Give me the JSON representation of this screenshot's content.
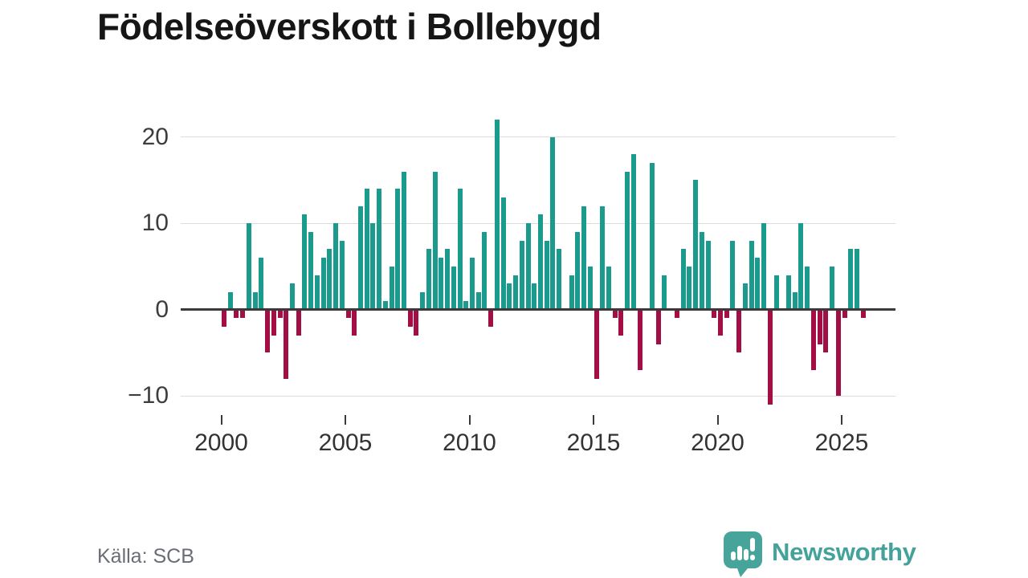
{
  "chart_data": {
    "type": "bar",
    "title": "Födelseöverskott i Bollebygd",
    "source": "Källa: SCB",
    "legend": "none",
    "grid": "horizontal",
    "xlabel": "",
    "ylabel": "",
    "ylim": [
      -13,
      23
    ],
    "y_axis_ticks": [
      {
        "value": 20,
        "label": "20"
      },
      {
        "value": 10,
        "label": "10"
      },
      {
        "value": 0,
        "label": "0"
      },
      {
        "value": -10,
        "label": "−10"
      }
    ],
    "x_axis_ticks": [
      {
        "year": 2000,
        "label": "2000"
      },
      {
        "year": 2005,
        "label": "2005"
      },
      {
        "year": 2010,
        "label": "2010"
      },
      {
        "year": 2015,
        "label": "2015"
      },
      {
        "year": 2020,
        "label": "2020"
      },
      {
        "year": 2025,
        "label": "2025"
      }
    ],
    "colors": {
      "positive": "#1b9a8e",
      "negative": "#a30e45"
    },
    "frequency": "quarterly",
    "series": [
      {
        "year": 2000,
        "values": [
          -2,
          2,
          -1,
          -1
        ]
      },
      {
        "year": 2001,
        "values": [
          10,
          2,
          6,
          -5
        ]
      },
      {
        "year": 2002,
        "values": [
          -3,
          -1,
          -8,
          3
        ]
      },
      {
        "year": 2003,
        "values": [
          -3,
          11,
          9,
          4
        ]
      },
      {
        "year": 2004,
        "values": [
          6,
          7,
          10,
          8
        ]
      },
      {
        "year": 2005,
        "values": [
          -1,
          -3,
          12,
          14
        ]
      },
      {
        "year": 2006,
        "values": [
          10,
          14,
          1,
          5
        ]
      },
      {
        "year": 2007,
        "values": [
          14,
          16,
          -2,
          -3
        ]
      },
      {
        "year": 2008,
        "values": [
          2,
          7,
          16,
          6
        ]
      },
      {
        "year": 2009,
        "values": [
          7,
          5,
          14,
          1
        ]
      },
      {
        "year": 2010,
        "values": [
          6,
          2,
          9,
          -2
        ]
      },
      {
        "year": 2011,
        "values": [
          22,
          13,
          3,
          4
        ]
      },
      {
        "year": 2012,
        "values": [
          8,
          10,
          3,
          11
        ]
      },
      {
        "year": 2013,
        "values": [
          8,
          20,
          7,
          0
        ]
      },
      {
        "year": 2014,
        "values": [
          4,
          9,
          12,
          5
        ]
      },
      {
        "year": 2015,
        "values": [
          -8,
          12,
          5,
          -1
        ]
      },
      {
        "year": 2016,
        "values": [
          -3,
          16,
          18,
          -7
        ]
      },
      {
        "year": 2017,
        "values": [
          0,
          17,
          -4,
          4
        ]
      },
      {
        "year": 2018,
        "values": [
          0,
          -1,
          7,
          5
        ]
      },
      {
        "year": 2019,
        "values": [
          15,
          9,
          8,
          -1
        ]
      },
      {
        "year": 2020,
        "values": [
          -3,
          -1,
          8,
          -5
        ]
      },
      {
        "year": 2021,
        "values": [
          3,
          8,
          6,
          10
        ]
      },
      {
        "year": 2022,
        "values": [
          -11,
          4,
          0,
          4
        ]
      },
      {
        "year": 2023,
        "values": [
          2,
          10,
          5,
          -7
        ]
      },
      {
        "year": 2024,
        "values": [
          -4,
          -5,
          5,
          -10
        ]
      },
      {
        "year": 2025,
        "values": [
          -1,
          7,
          7,
          -1
        ]
      }
    ]
  },
  "branding": {
    "logo_text": "Newsworthy"
  }
}
